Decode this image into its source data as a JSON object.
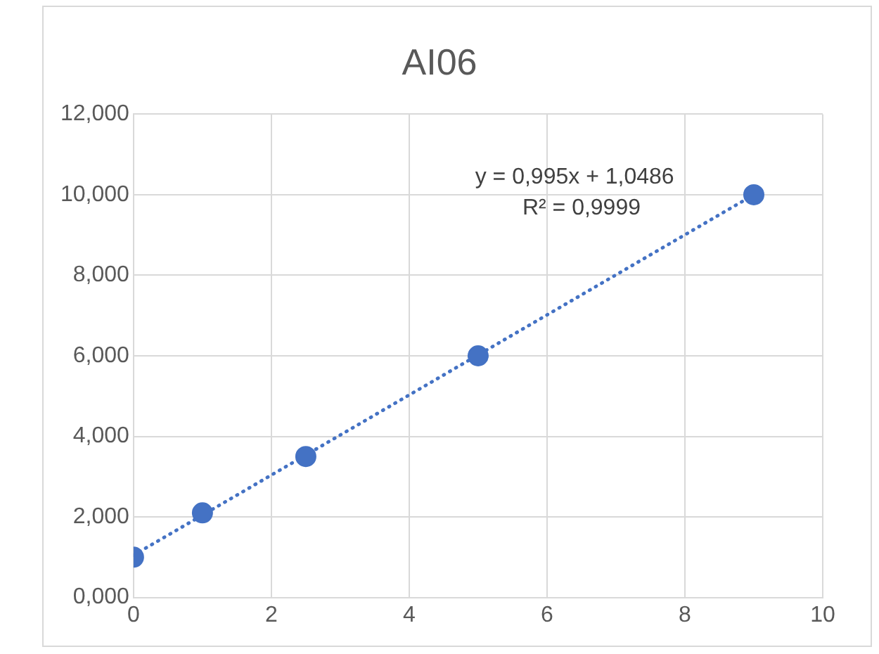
{
  "chart_data": {
    "type": "scatter",
    "title": "AI06",
    "x": [
      0,
      1,
      2.5,
      5,
      9
    ],
    "series": [
      {
        "color": "#4472c4",
        "values": [
          1.0,
          2.1,
          3.5,
          6.0,
          10.0
        ],
        "marker": "circle"
      },
      {
        "type": "line",
        "color": "#4472c4",
        "x": [
          0,
          9
        ],
        "values": [
          1.05,
          10.0
        ],
        "line_style": "dotted",
        "marker": "none"
      }
    ],
    "xlim": [
      0,
      10
    ],
    "xticks": [
      0,
      2,
      4,
      6,
      8,
      10
    ],
    "ylim": [
      0,
      12
    ],
    "yticks": [
      {
        "value": 0,
        "label": "0,000"
      },
      {
        "value": 2,
        "label": "2,000"
      },
      {
        "value": 4,
        "label": "4,000"
      },
      {
        "value": 6,
        "label": "6,000"
      },
      {
        "value": 8,
        "label": "8,000"
      },
      {
        "value": 10,
        "label": "10,000"
      },
      {
        "value": 12,
        "label": "12,000"
      }
    ],
    "grid": true,
    "legend": false,
    "annotations": [
      "y = 0,995x + 1,0486",
      "R² = 0,9999"
    ]
  }
}
